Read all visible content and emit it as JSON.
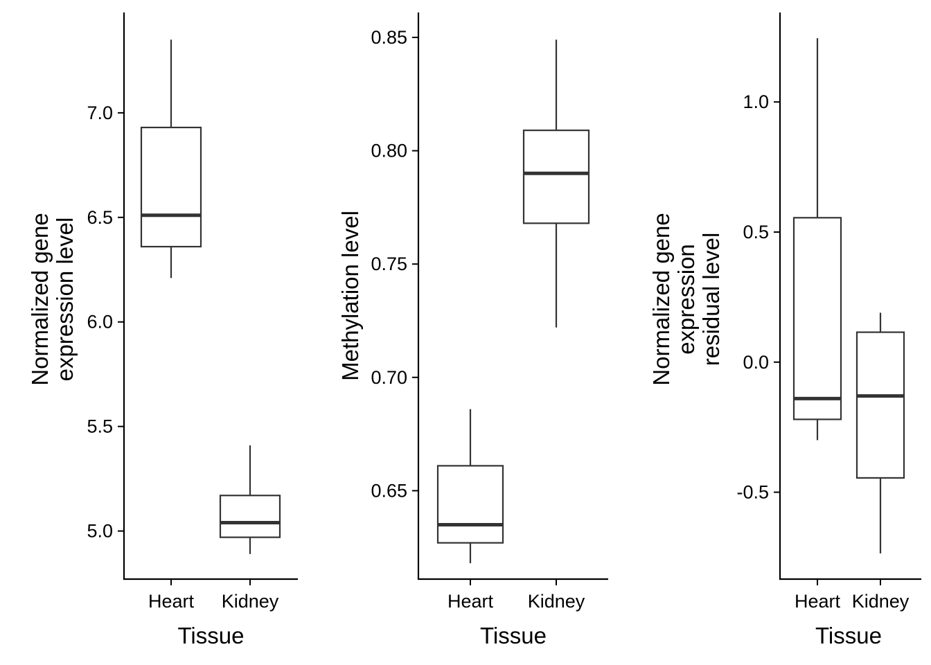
{
  "chart_data": [
    {
      "type": "box",
      "categories": [
        "Heart",
        "Kidney"
      ],
      "xlabel": "Tissue",
      "ylabel": [
        "Normalized gene",
        "expression level"
      ],
      "ylim": [
        4.77,
        7.48
      ],
      "yticks": [
        5.0,
        5.5,
        6.0,
        6.5,
        7.0
      ],
      "yticklabels": [
        "5.0",
        "5.5",
        "6.0",
        "6.5",
        "7.0"
      ],
      "boxes": [
        {
          "category": "Heart",
          "whisker_low": 6.21,
          "q1": 6.36,
          "median": 6.51,
          "q3": 6.93,
          "whisker_high": 7.35
        },
        {
          "category": "Kidney",
          "whisker_low": 4.89,
          "q1": 4.97,
          "median": 5.04,
          "q3": 5.17,
          "whisker_high": 5.41
        }
      ]
    },
    {
      "type": "box",
      "categories": [
        "Heart",
        "Kidney"
      ],
      "xlabel": "Tissue",
      "ylabel": [
        "Methylation level"
      ],
      "ylim": [
        0.611,
        0.861
      ],
      "yticks": [
        0.65,
        0.7,
        0.75,
        0.8,
        0.85
      ],
      "yticklabels": [
        "0.65",
        "0.70",
        "0.75",
        "0.80",
        "0.85"
      ],
      "boxes": [
        {
          "category": "Heart",
          "whisker_low": 0.618,
          "q1": 0.627,
          "median": 0.635,
          "q3": 0.661,
          "whisker_high": 0.686
        },
        {
          "category": "Kidney",
          "whisker_low": 0.722,
          "q1": 0.768,
          "median": 0.79,
          "q3": 0.809,
          "whisker_high": 0.849
        }
      ]
    },
    {
      "type": "box",
      "categories": [
        "Heart",
        "Kidney"
      ],
      "xlabel": "Tissue",
      "ylabel": [
        "Normalized gene",
        "expression",
        "residual level"
      ],
      "ylim": [
        -0.834,
        1.344
      ],
      "yticks": [
        -0.5,
        0.0,
        0.5,
        1.0
      ],
      "yticklabels": [
        "-0.5",
        "0.0",
        "0.5",
        "1.0"
      ],
      "boxes": [
        {
          "category": "Heart",
          "whisker_low": -0.3,
          "q1": -0.22,
          "median": -0.14,
          "q3": 0.555,
          "whisker_high": 1.245
        },
        {
          "category": "Kidney",
          "whisker_low": -0.735,
          "q1": -0.445,
          "median": -0.13,
          "q3": 0.115,
          "whisker_high": 0.19
        }
      ]
    }
  ],
  "colors": {
    "box_stroke": "#333333",
    "axis": "#000000",
    "background": "#ffffff"
  }
}
